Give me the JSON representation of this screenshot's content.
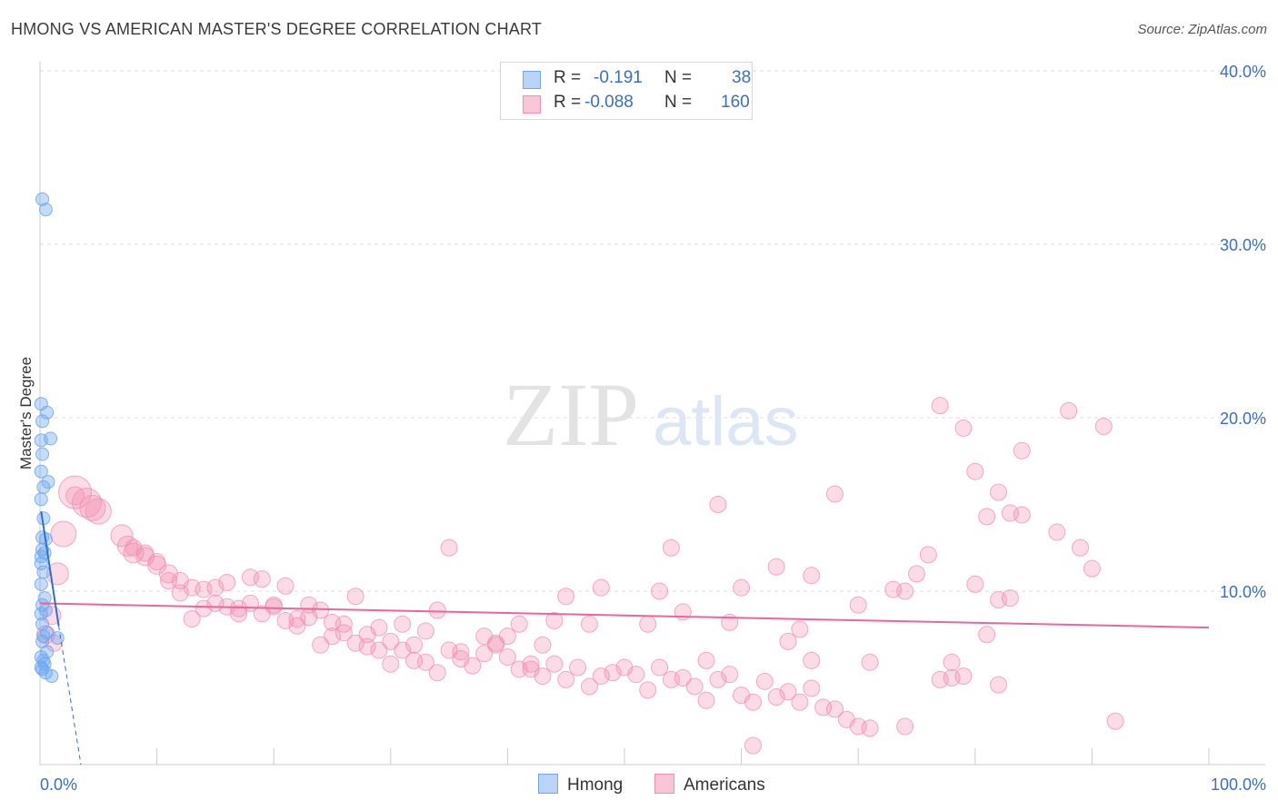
{
  "title": "HMONG VS AMERICAN MASTER'S DEGREE CORRELATION CHART",
  "source": "Source: ZipAtlas.com",
  "watermark": {
    "zip": "ZIP",
    "atlas": "atlas"
  },
  "legend": {
    "r_label": "R =",
    "n_label": "N =",
    "hmong": {
      "r": "-0.191",
      "n": "38"
    },
    "americans": {
      "r": "-0.088",
      "n": "160"
    }
  },
  "bottom_legend": {
    "hmong": "Hmong",
    "americans": "Americans"
  },
  "chart_data": {
    "type": "scatter",
    "ylabel": "Master's Degree",
    "xlabel": "",
    "xlim": [
      0,
      100
    ],
    "ylim": [
      0,
      40
    ],
    "x_tick_labels": [
      "0.0%",
      "100.0%"
    ],
    "y_ticks": [
      10,
      20,
      30,
      40
    ],
    "y_tick_labels": [
      "10.0%",
      "20.0%",
      "30.0%",
      "40.0%"
    ],
    "colors": {
      "hmong": "#6fa8f0",
      "hmong_line": "#2f6fd0",
      "americans": "#f28fb0",
      "americans_line": "#e8689a",
      "tick_text": "#3a6fc4"
    },
    "series": [
      {
        "name": "Hmong",
        "trend": {
          "x": [
            0.1,
            1.6
          ],
          "y": [
            14.6,
            8.0
          ]
        },
        "trend_dashed": {
          "x": [
            1.6,
            3.5
          ],
          "y": [
            8.0,
            0.0
          ]
        },
        "points": [
          [
            0.2,
            32.6
          ],
          [
            0.5,
            32.0
          ],
          [
            0.1,
            20.8
          ],
          [
            0.6,
            20.3
          ],
          [
            0.2,
            19.8
          ],
          [
            0.9,
            18.8
          ],
          [
            0.1,
            18.7
          ],
          [
            0.2,
            17.9
          ],
          [
            0.1,
            16.9
          ],
          [
            0.7,
            16.3
          ],
          [
            0.3,
            16.0
          ],
          [
            0.1,
            15.3
          ],
          [
            0.5,
            13.0
          ],
          [
            0.2,
            12.4
          ],
          [
            0.4,
            12.2
          ],
          [
            0.1,
            12.0
          ],
          [
            0.3,
            11.1
          ],
          [
            0.1,
            10.4
          ],
          [
            0.2,
            9.2
          ],
          [
            0.5,
            8.9
          ],
          [
            0.1,
            8.7
          ],
          [
            0.3,
            7.4
          ],
          [
            1.5,
            7.3
          ],
          [
            0.2,
            7.1
          ],
          [
            0.6,
            6.5
          ],
          [
            0.1,
            6.2
          ],
          [
            0.4,
            5.8
          ],
          [
            0.2,
            5.5
          ],
          [
            0.5,
            5.3
          ],
          [
            1.0,
            5.1
          ],
          [
            0.1,
            5.6
          ],
          [
            0.3,
            6.0
          ],
          [
            0.6,
            7.6
          ],
          [
            0.2,
            13.1
          ],
          [
            0.4,
            9.6
          ],
          [
            0.1,
            11.6
          ],
          [
            0.3,
            14.2
          ],
          [
            0.2,
            8.1
          ]
        ]
      },
      {
        "name": "Americans",
        "trend": {
          "x": [
            0,
            100
          ],
          "y": [
            9.3,
            7.9
          ]
        },
        "points": [
          [
            3,
            15.7,
            17
          ],
          [
            4,
            15.1,
            15
          ],
          [
            4.5,
            14.8,
            13
          ],
          [
            5,
            14.6,
            13
          ],
          [
            2,
            13.3,
            13
          ],
          [
            7,
            13.2,
            11
          ],
          [
            7.5,
            12.6,
            10
          ],
          [
            8,
            12.2,
            10
          ],
          [
            9,
            12.0,
            9
          ],
          [
            10,
            11.5,
            9
          ],
          [
            11,
            11.0,
            9
          ],
          [
            1.5,
            11.0,
            11
          ],
          [
            12,
            10.6,
            8
          ],
          [
            13,
            10.2,
            8
          ],
          [
            14,
            10.1,
            8
          ],
          [
            15,
            9.3,
            8
          ],
          [
            16,
            9.1,
            8
          ],
          [
            17,
            9.0,
            8
          ],
          [
            18,
            9.3,
            8
          ],
          [
            19,
            8.7,
            8
          ],
          [
            20,
            9.1,
            8
          ],
          [
            21,
            8.3,
            8
          ],
          [
            22,
            8.0,
            8
          ],
          [
            23,
            8.5,
            8
          ],
          [
            24,
            8.9,
            8
          ],
          [
            25,
            8.2,
            8
          ],
          [
            26,
            7.6,
            8
          ],
          [
            27,
            7.0,
            8
          ],
          [
            28,
            7.5,
            8
          ],
          [
            29,
            6.6,
            8
          ],
          [
            30,
            7.1,
            8
          ],
          [
            31,
            6.6,
            8
          ],
          [
            32,
            6.0,
            8
          ],
          [
            33,
            5.9,
            8
          ],
          [
            34,
            5.3,
            8
          ],
          [
            35,
            6.6,
            8
          ],
          [
            36,
            6.1,
            8
          ],
          [
            37,
            5.7,
            8
          ],
          [
            38,
            6.4,
            8
          ],
          [
            39,
            6.9,
            8
          ],
          [
            40,
            6.2,
            8
          ],
          [
            41,
            5.5,
            8
          ],
          [
            42,
            5.8,
            8
          ],
          [
            43,
            5.1,
            8
          ],
          [
            44,
            5.8,
            8
          ],
          [
            45,
            4.9,
            8
          ],
          [
            46,
            5.6,
            8
          ],
          [
            47,
            4.5,
            8
          ],
          [
            48,
            5.1,
            8
          ],
          [
            49,
            5.3,
            8
          ],
          [
            50,
            5.6,
            8
          ],
          [
            51,
            5.2,
            8
          ],
          [
            52,
            4.3,
            8
          ],
          [
            53,
            5.6,
            8
          ],
          [
            54,
            4.9,
            8
          ],
          [
            55,
            5.0,
            8
          ],
          [
            56,
            4.5,
            8
          ],
          [
            57,
            3.7,
            8
          ],
          [
            58,
            4.9,
            8
          ],
          [
            59,
            5.2,
            8
          ],
          [
            60,
            4.0,
            8
          ],
          [
            61,
            3.6,
            8
          ],
          [
            62,
            4.8,
            8
          ],
          [
            63,
            3.9,
            8
          ],
          [
            64,
            4.2,
            8
          ],
          [
            65,
            3.6,
            8
          ],
          [
            66,
            4.4,
            8
          ],
          [
            67,
            3.3,
            8
          ],
          [
            68,
            3.2,
            8
          ],
          [
            69,
            2.6,
            8
          ],
          [
            70,
            2.2,
            8
          ],
          [
            71,
            2.1,
            8
          ],
          [
            58,
            15.0,
            8
          ],
          [
            54,
            12.5,
            8
          ],
          [
            63,
            11.4,
            8
          ],
          [
            66,
            10.9,
            8
          ],
          [
            60,
            10.2,
            8
          ],
          [
            48,
            10.2,
            8
          ],
          [
            55,
            8.8,
            8
          ],
          [
            47,
            8.1,
            8
          ],
          [
            59,
            8.2,
            8
          ],
          [
            64,
            7.1,
            8
          ],
          [
            70,
            9.2,
            8
          ],
          [
            73,
            10.1,
            8
          ],
          [
            76,
            12.1,
            8
          ],
          [
            80,
            16.9,
            8
          ],
          [
            82,
            15.7,
            8
          ],
          [
            83,
            14.5,
            8
          ],
          [
            84,
            14.4,
            8
          ],
          [
            77,
            20.7,
            8
          ],
          [
            75,
            11.0,
            8
          ],
          [
            68,
            15.6,
            8
          ],
          [
            74,
            10.0,
            8
          ],
          [
            78,
            5.9,
            8
          ],
          [
            88,
            20.4,
            8
          ],
          [
            91,
            19.5,
            8
          ],
          [
            79,
            19.4,
            8
          ],
          [
            84,
            18.1,
            8
          ],
          [
            81,
            14.3,
            8
          ],
          [
            87,
            13.4,
            8
          ],
          [
            89,
            12.5,
            8
          ],
          [
            90,
            11.3,
            8
          ],
          [
            82,
            9.5,
            8
          ],
          [
            80,
            10.4,
            8
          ],
          [
            83,
            9.6,
            8
          ],
          [
            81,
            7.5,
            8
          ],
          [
            82,
            4.6,
            8
          ],
          [
            92,
            2.5,
            8
          ],
          [
            74,
            2.2,
            8
          ],
          [
            71,
            5.9,
            8
          ],
          [
            77,
            4.9,
            8
          ],
          [
            78,
            5.0,
            8
          ],
          [
            79,
            5.1,
            8
          ],
          [
            61,
            1.1,
            8
          ],
          [
            66,
            6.0,
            8
          ],
          [
            65,
            7.8,
            8
          ],
          [
            57,
            6.0,
            8
          ],
          [
            53,
            10.0,
            8
          ],
          [
            52,
            8.1,
            8
          ],
          [
            45,
            9.7,
            8
          ],
          [
            44,
            8.3,
            8
          ],
          [
            43,
            6.9,
            8
          ],
          [
            42,
            5.5,
            8
          ],
          [
            41,
            8.1,
            8
          ],
          [
            40,
            7.4,
            8
          ],
          [
            39,
            7.0,
            8
          ],
          [
            38,
            7.4,
            8
          ],
          [
            36,
            6.5,
            8
          ],
          [
            35,
            12.5,
            8
          ],
          [
            34,
            8.9,
            8
          ],
          [
            33,
            7.7,
            8
          ],
          [
            32,
            6.9,
            8
          ],
          [
            31,
            8.1,
            8
          ],
          [
            30,
            5.8,
            8
          ],
          [
            29,
            7.9,
            8
          ],
          [
            28,
            6.8,
            8
          ],
          [
            27,
            9.7,
            8
          ],
          [
            26,
            8.1,
            8
          ],
          [
            25,
            7.4,
            8
          ],
          [
            24,
            6.9,
            8
          ],
          [
            23,
            9.2,
            8
          ],
          [
            22,
            8.4,
            8
          ],
          [
            21,
            10.3,
            8
          ],
          [
            20,
            9.2,
            8
          ],
          [
            19,
            10.7,
            8
          ],
          [
            18,
            10.8,
            8
          ],
          [
            17,
            8.7,
            8
          ],
          [
            16,
            10.5,
            8
          ],
          [
            15,
            10.2,
            8
          ],
          [
            14,
            9.0,
            8
          ],
          [
            13,
            8.4,
            8
          ],
          [
            12,
            9.9,
            8
          ],
          [
            11,
            10.6,
            8
          ],
          [
            10,
            11.7,
            8
          ],
          [
            9,
            12.2,
            8
          ],
          [
            8,
            12.5,
            8
          ],
          [
            3,
            15.5,
            9
          ],
          [
            1,
            8.6,
            9
          ],
          [
            0.5,
            7.5,
            9
          ],
          [
            1.2,
            7.0,
            8
          ]
        ]
      }
    ]
  }
}
